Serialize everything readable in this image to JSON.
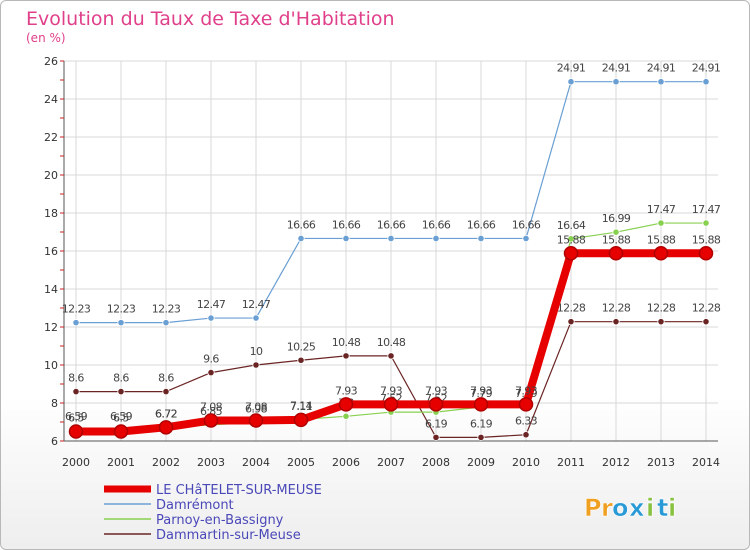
{
  "chart_data": {
    "type": "line",
    "title": "Evolution du Taux de Taxe d'Habitation",
    "subtitle": "(en %)",
    "x": [
      2000,
      2001,
      2002,
      2003,
      2004,
      2005,
      2006,
      2007,
      2008,
      2009,
      2010,
      2011,
      2012,
      2013,
      2014
    ],
    "ylim": [
      6,
      26
    ],
    "yticks": [
      6,
      8,
      10,
      12,
      14,
      16,
      18,
      20,
      22,
      24,
      26
    ],
    "grid": true,
    "legend_position": "bottom-left",
    "series": [
      {
        "name": "LE CHâTELET-SUR-MEUSE",
        "color": "#e60000",
        "values": [
          6.5,
          6.5,
          6.72,
          7.08,
          7.08,
          7.11,
          7.93,
          7.93,
          7.93,
          7.93,
          7.93,
          15.88,
          15.88,
          15.88,
          15.88
        ],
        "labels": [
          "6.5",
          "6.5",
          "6.72",
          "7.08",
          "7.08",
          "7.11",
          "7.93",
          "7.93",
          "7.93",
          "7.93",
          "7.93",
          "15.88",
          "15.88",
          "15.88",
          "15.88"
        ]
      },
      {
        "name": "Damrémont",
        "color": "#6a9fd4",
        "values": [
          12.23,
          12.23,
          12.23,
          12.47,
          12.47,
          16.66,
          16.66,
          16.66,
          16.66,
          16.66,
          16.66,
          24.91,
          24.91,
          24.91,
          24.91
        ],
        "labels": [
          "12.23",
          "12.23",
          "12.23",
          "12.47",
          "12.47",
          "16.66",
          "16.66",
          "16.66",
          "16.66",
          "16.66",
          "16.66",
          "24.91",
          "24.91",
          "24.91",
          "24.91"
        ]
      },
      {
        "name": "Parnoy-en-Bassigny",
        "color": "#88d050",
        "values": [
          6.59,
          6.59,
          6.72,
          6.85,
          6.98,
          7.14,
          7.3,
          7.52,
          7.52,
          7.79,
          7.79,
          16.64,
          16.99,
          17.47,
          17.47
        ],
        "labels": [
          "6.59",
          "6.59",
          "6.72",
          "6.85",
          "6.98",
          "7.14",
          "7.3",
          "7.52",
          "7.52",
          "7.79",
          "7.79",
          "16.64",
          "16.99",
          "17.47",
          "17.47"
        ]
      },
      {
        "name": "Dammartin-sur-Meuse",
        "color": "#6b2424",
        "values": [
          8.6,
          8.6,
          8.6,
          9.6,
          10,
          10.25,
          10.48,
          10.48,
          6.19,
          6.19,
          6.33,
          12.28,
          12.28,
          12.28,
          12.28
        ],
        "labels": [
          "8.6",
          "8.6",
          "8.6",
          "9.6",
          "10",
          "10.25",
          "10.48",
          "10.48",
          "6.19",
          "6.19",
          "6.33",
          "12.28",
          "12.28",
          "12.28",
          "12.28"
        ]
      }
    ]
  },
  "brand": {
    "logo_text": "Proxiti",
    "logo_letters": [
      "P",
      "r",
      "o",
      "x",
      "i",
      "t",
      "i"
    ],
    "logo_colors": [
      "#f0a020",
      "#f0a020",
      "#2a9ad6",
      "#2a9ad6",
      "#88c040",
      "#2a9ad6",
      "#88c040"
    ]
  },
  "colors": {
    "title": "#e0408a",
    "axis_text": "#333333",
    "grid": "#d8d8d8",
    "axis": "#555555",
    "legend_text": "#4a48b8"
  }
}
